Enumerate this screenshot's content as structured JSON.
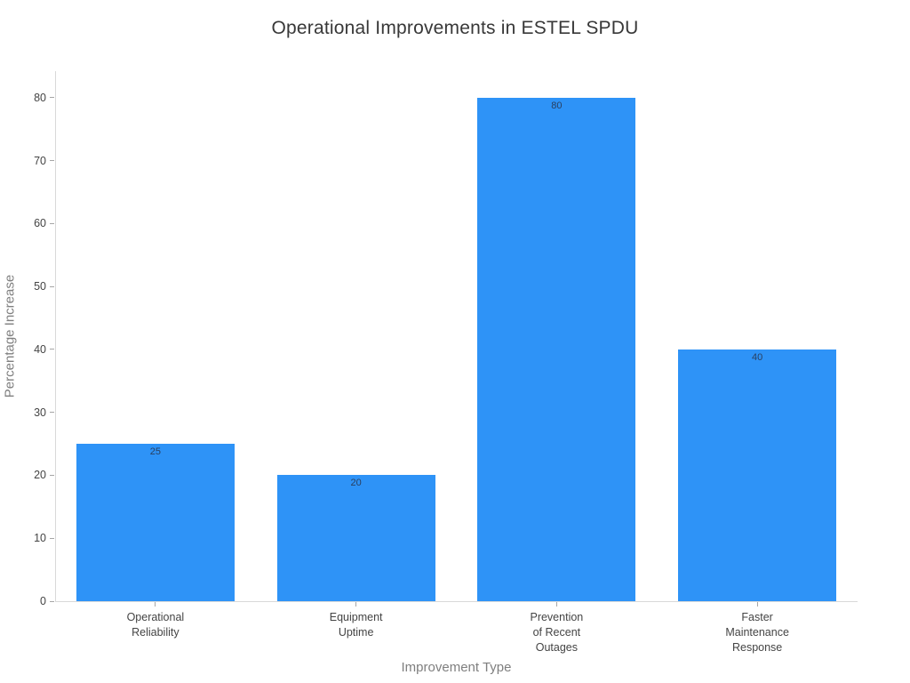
{
  "chart_data": {
    "type": "bar",
    "title": "Operational Improvements in ESTEL SPDU",
    "xlabel": "Improvement Type",
    "ylabel": "Percentage Increase",
    "categories": [
      "Operational\nReliability",
      "Equipment\nUptime",
      "Prevention\nof Recent\nOutages",
      "Faster\nMaintenance\nResponse"
    ],
    "values": [
      25,
      20,
      80,
      40
    ],
    "bar_labels": [
      "25",
      "20",
      "80",
      "40"
    ],
    "yticks": [
      0,
      10,
      20,
      30,
      40,
      50,
      60,
      70,
      80
    ],
    "ylim": [
      0,
      84.2
    ],
    "grid": false,
    "legend": "none",
    "colors": {
      "bar_fill": "#2e93f7",
      "bar_label": "#2a3f5f",
      "axis_line": "#d9d9d9",
      "tick_mark": "#a6a6a6",
      "tick_label": "#444444",
      "axis_title": "#7f7f7f",
      "title": "#383838"
    }
  }
}
